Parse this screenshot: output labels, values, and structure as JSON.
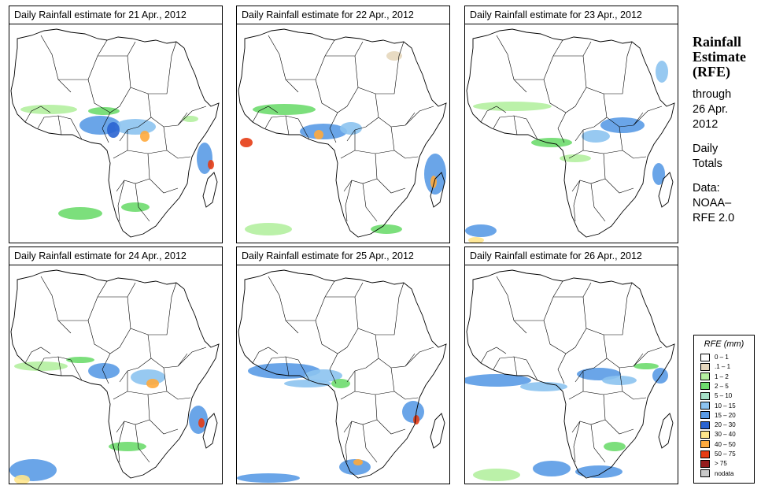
{
  "panels": [
    {
      "title": "Daily Rainfall estimate for  21 Apr., 2012"
    },
    {
      "title": "Daily Rainfall estimate for  22 Apr., 2012"
    },
    {
      "title": "Daily Rainfall estimate for  23 Apr., 2012"
    },
    {
      "title": "Daily Rainfall estimate for  24 Apr., 2012"
    },
    {
      "title": "Daily Rainfall estimate for  25 Apr., 2012"
    },
    {
      "title": "Daily Rainfall estimate for  26 Apr., 2012"
    }
  ],
  "side": {
    "title1": "Rainfall",
    "title2": "Estimate",
    "title3": "(RFE)",
    "through": "through",
    "date1": "26 Apr.",
    "date2": "2012",
    "daily": "Daily",
    "totals": "Totals",
    "data": "Data:",
    "source1": "NOAA–",
    "source2": "RFE 2.0"
  },
  "legend": {
    "title": "RFE (mm)",
    "items": [
      {
        "label": "0 – 1",
        "color": "#ffffff"
      },
      {
        "label": ".1 – 1",
        "color": "#e6d7bd"
      },
      {
        "label": "1 – 2",
        "color": "#b4f0a0"
      },
      {
        "label": "2 – 5",
        "color": "#6edc6e"
      },
      {
        "label": "5 – 10",
        "color": "#a6e0c8"
      },
      {
        "label": "10 – 15",
        "color": "#8cc3f0"
      },
      {
        "label": "15 – 20",
        "color": "#5a9be6"
      },
      {
        "label": "20 – 30",
        "color": "#2a64d2"
      },
      {
        "label": "30 – 40",
        "color": "#ffe68c"
      },
      {
        "label": "40 – 50",
        "color": "#ffaa3c"
      },
      {
        "label": "50 – 75",
        "color": "#e63c14"
      },
      {
        "label": "> 75",
        "color": "#961e1e"
      },
      {
        "label": "nodata",
        "color": "#c8c8c8"
      }
    ]
  }
}
